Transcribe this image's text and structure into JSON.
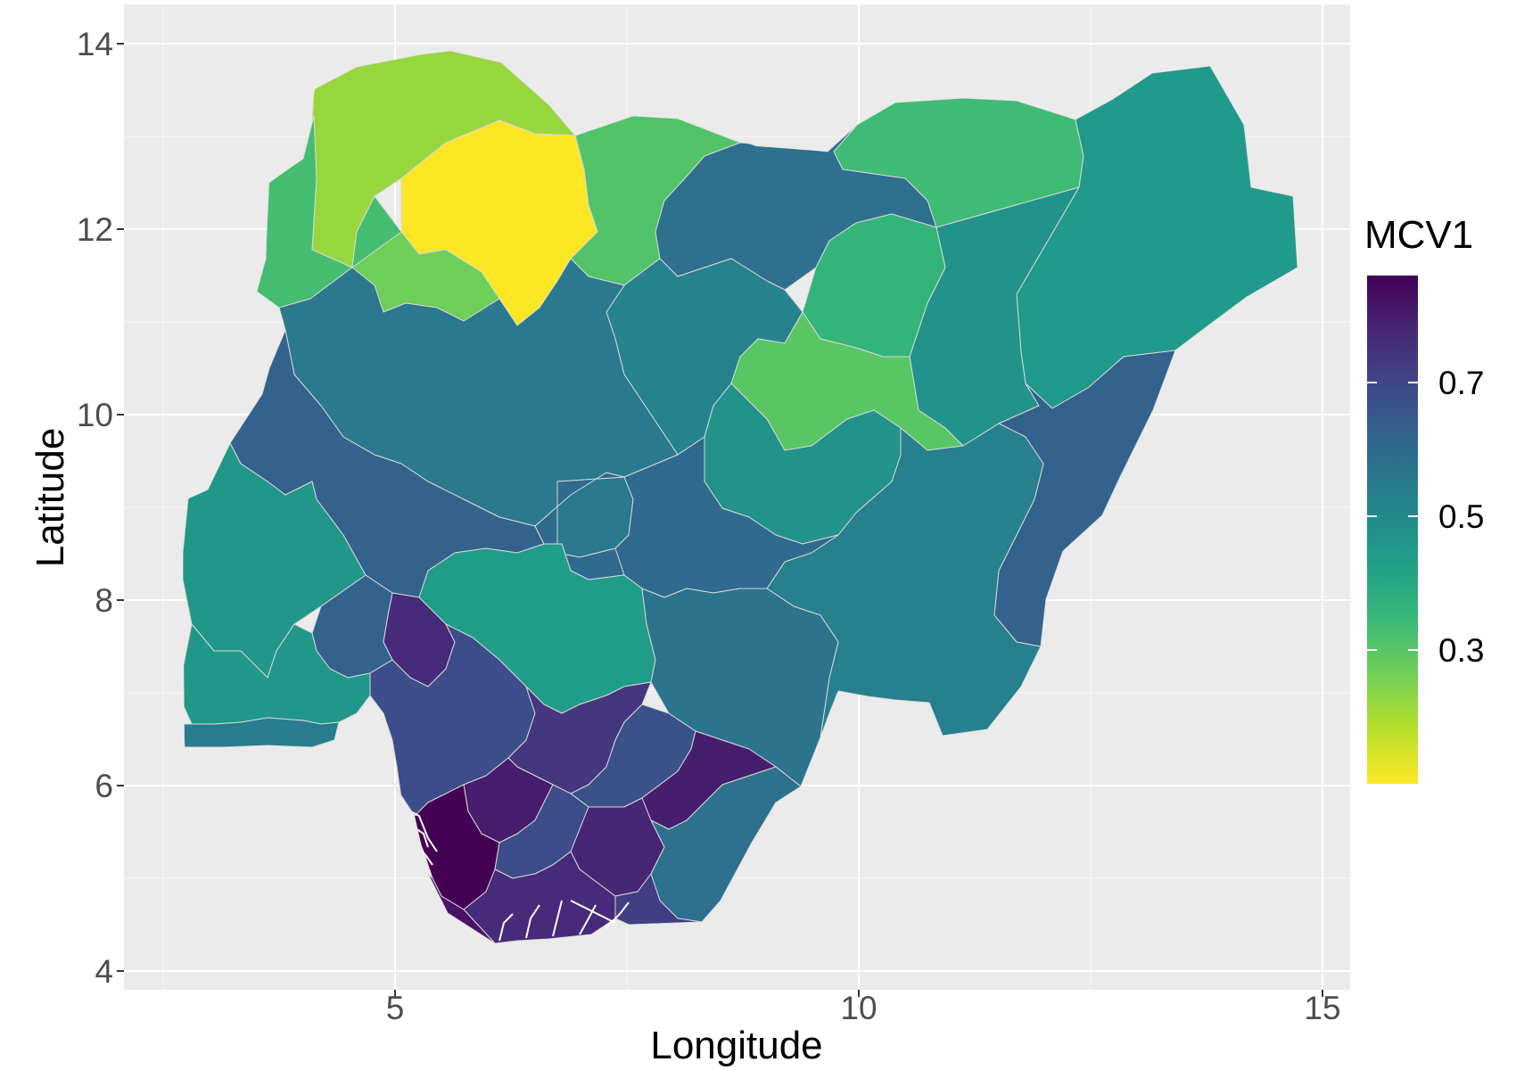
{
  "chart_data": {
    "type": "choropleth",
    "xlabel": "Longitude",
    "ylabel": "Latitude",
    "xlim": [
      2.6,
      15.2
    ],
    "ylim": [
      3.9,
      14.4
    ],
    "x_ticks": [
      5,
      10,
      15
    ],
    "y_ticks": [
      4,
      6,
      8,
      10,
      12,
      14
    ],
    "x_tick_labels": [
      "5",
      "10",
      "15"
    ],
    "y_tick_labels": [
      "4",
      "6",
      "8",
      "10",
      "12",
      "14"
    ],
    "grid": true,
    "legend": {
      "title": "MCV1",
      "placement": "right",
      "breaks": [
        0.3,
        0.5,
        0.7
      ],
      "break_labels": [
        "0.3",
        "0.5",
        "0.7"
      ],
      "range": [
        0.1,
        0.86
      ],
      "palette": "viridis (reversed)",
      "colors": [
        "#fde725",
        "#b5de2b",
        "#6ece58",
        "#35b779",
        "#1f9e89",
        "#26828e",
        "#31688e",
        "#3e4989",
        "#482878",
        "#440154"
      ]
    },
    "regions": [
      {
        "value": 0.22
      },
      {
        "value": 0.1
      },
      {
        "value": 0.31
      },
      {
        "value": 0.33
      },
      {
        "value": 0.27
      },
      {
        "value": 0.34
      },
      {
        "value": 0.45
      },
      {
        "value": 0.47
      },
      {
        "value": 0.58
      },
      {
        "value": 0.52
      },
      {
        "value": 0.55
      },
      {
        "value": 0.36
      },
      {
        "value": 0.3
      },
      {
        "value": 0.62
      },
      {
        "value": 0.53
      },
      {
        "value": 0.47
      },
      {
        "value": 0.62
      },
      {
        "value": 0.46
      },
      {
        "value": 0.55
      },
      {
        "value": 0.6
      },
      {
        "value": 0.44
      },
      {
        "value": 0.57
      },
      {
        "value": 0.77
      },
      {
        "value": 0.62
      },
      {
        "value": 0.68
      },
      {
        "value": 0.46
      },
      {
        "value": 0.54
      },
      {
        "value": 0.74
      },
      {
        "value": 0.8
      },
      {
        "value": 0.67
      },
      {
        "value": 0.8
      },
      {
        "value": 0.86
      },
      {
        "value": 0.68
      },
      {
        "value": 0.78
      },
      {
        "value": 0.58
      },
      {
        "value": 0.77
      },
      {
        "value": 0.82
      },
      {
        "value": 0.72
      },
      {
        "value": 0.61
      },
      {
        "value": 0.7
      }
    ]
  }
}
